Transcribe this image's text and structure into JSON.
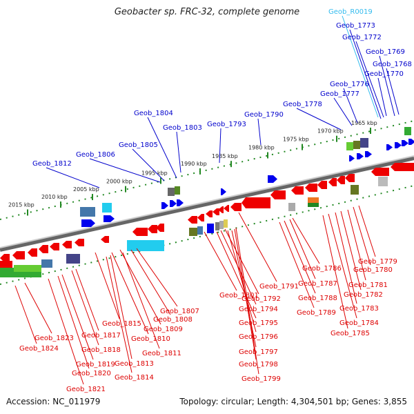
{
  "title": "Geobacter sp. FRC-32, complete genome",
  "footer": {
    "accession": "Accession: NC_011979",
    "topology": "Topology: circular; Length: 4,304,501 bp; Genes: 3,855"
  },
  "colors": {
    "forward_label": "#0000cc",
    "reverse_label": "#dd0000",
    "rna_label": "#33bbee",
    "backbone": "#888888",
    "tick": "#228822"
  },
  "kbp_ticks": [
    "2015 kbp",
    "2010 kbp",
    "2005 kbp",
    "2000 kbp",
    "1995 kbp",
    "1990 kbp",
    "1985 kbp",
    "1980 kbp",
    "1975 kbp",
    "1970 kbp",
    "1965 kbp"
  ],
  "top_labels": [
    "Geob_R0019",
    "Geob_1773",
    "Geob_1772",
    "Geob_1769",
    "Geob_1768",
    "Geob_1770",
    "Geob_1776",
    "Geob_1777",
    "Geob_1778",
    "Geob_1790",
    "Geob_1793",
    "Geob_1804",
    "Geob_1803",
    "Geob_1805",
    "Geob_1806",
    "Geob_1812"
  ],
  "bottom_labels": [
    "Geob_1779",
    "Geob_1780",
    "Geob_1786",
    "Geob_1781",
    "Geob_1787",
    "Geob_1782",
    "Geob_1788",
    "Geob_1783",
    "Geob_1789",
    "Geob_1784",
    "Geob_1785",
    "Geob_1791",
    "Geob_1801",
    "Geob_1792",
    "Geob_1794",
    "Geob_1795",
    "Geob_1796",
    "Geob_1797",
    "Geob_1798",
    "Geob_1799",
    "Geob_1807",
    "Geob_1808",
    "Geob_1815",
    "Geob_1809",
    "Geob_1810",
    "Geob_1811",
    "Geob_1813",
    "Geob_1814",
    "Geob_1823",
    "Geob_1817",
    "Geob_1824",
    "Geob_1818",
    "Geob_1819",
    "Geob_1820",
    "Geob_1821"
  ]
}
